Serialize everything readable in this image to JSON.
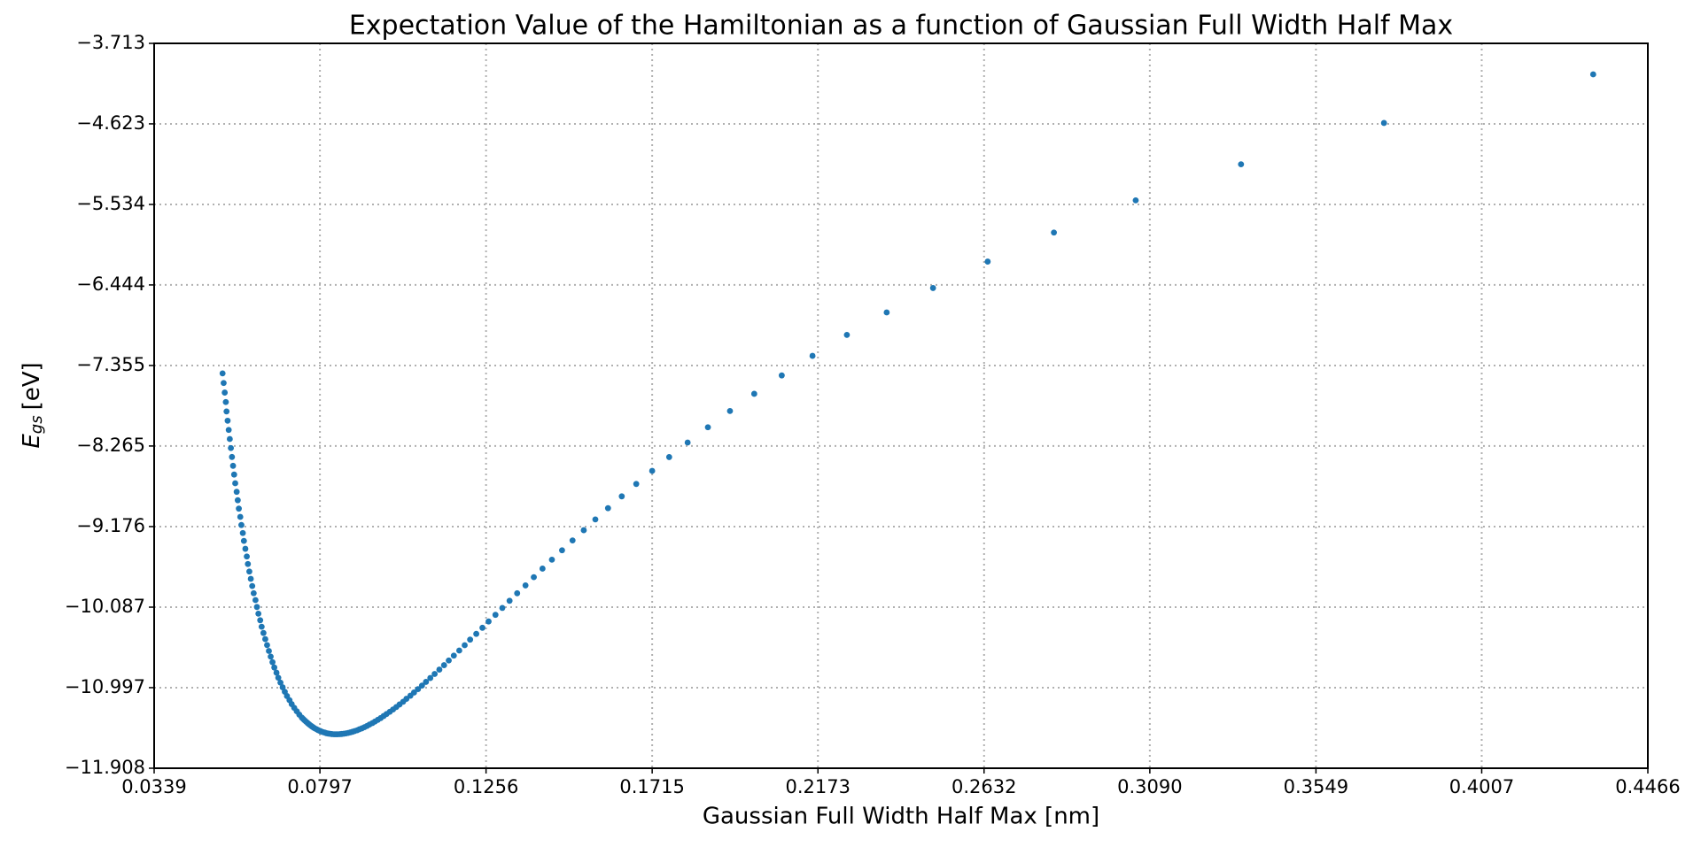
{
  "chart_data": {
    "type": "scatter",
    "title": "Expectation Value of the Hamiltonian as a function of Gaussian Full Width Half Max",
    "x_label": "Gaussian Full Width Half Max [nm]",
    "y_label": {
      "symbol": "E",
      "subscript": "gs",
      "unit": "[eV]"
    },
    "color": "#1f77b4",
    "grid": true,
    "xlim": [
      0.0339,
      0.4466
    ],
    "ylim": [
      -11.908,
      -3.713
    ],
    "xticks": [
      0.0339,
      0.0797,
      0.1256,
      0.1715,
      0.2173,
      0.2632,
      {
        "value": 0.309,
        "label": "0.3090"
      },
      0.3549,
      0.4007,
      0.4466
    ],
    "yticks": [
      {
        "value": -11.908,
        "label": "−11.908"
      },
      {
        "value": -10.997,
        "label": "−10.997"
      },
      {
        "value": -10.087,
        "label": "−10.087"
      },
      {
        "value": -9.176,
        "label": "−9.176"
      },
      {
        "value": -8.265,
        "label": "−8.265"
      },
      {
        "value": -7.355,
        "label": "−7.355"
      },
      {
        "value": -6.444,
        "label": "−6.444"
      },
      {
        "value": -5.534,
        "label": "−5.534"
      },
      {
        "value": -4.623,
        "label": "−4.623"
      },
      {
        "value": -3.713,
        "label": "−3.713"
      }
    ],
    "x": [
      0.4315,
      0.3737,
      0.3342,
      0.3051,
      0.2825,
      0.2642,
      0.2491,
      0.2363,
      0.2253,
      0.2158,
      0.2073,
      0.1997,
      0.193,
      0.1869,
      0.1813,
      0.1762,
      0.1715,
      0.1671,
      0.1631,
      0.1593,
      0.1558,
      0.1526,
      0.1495,
      0.1466,
      0.1438,
      0.1412,
      0.1388,
      0.1365,
      0.1342,
      0.1321,
      0.1301,
      0.1282,
      0.1263,
      0.1246,
      0.1229,
      0.1212,
      0.1197,
      0.1182,
      0.1167,
      0.1153,
      0.114,
      0.1127,
      0.1114,
      0.1102,
      0.109,
      0.1079,
      0.1068,
      0.1057,
      0.1047,
      0.1036,
      0.1027,
      0.1017,
      0.1008,
      0.0999,
      0.099,
      0.0981,
      0.0973,
      0.0965,
      0.0957,
      0.0949,
      0.0942,
      0.0934,
      0.0927,
      0.092,
      0.0913,
      0.0906,
      0.09,
      0.0893,
      0.0887,
      0.0881,
      0.0875,
      0.0869,
      0.0863,
      0.0857,
      0.0852,
      0.0846,
      0.0841,
      0.0836,
      0.083,
      0.0825,
      0.082,
      0.0815,
      0.0811,
      0.0806,
      0.0801,
      0.0797,
      0.0792,
      0.0788,
      0.0783,
      0.0779,
      0.0775,
      0.0771,
      0.0767,
      0.0763,
      0.0759,
      0.0755,
      0.0751,
      0.0747,
      0.074,
      0.0733,
      0.0726,
      0.0719,
      0.0713,
      0.0706,
      0.07,
      0.0694,
      0.0688,
      0.0682,
      0.0677,
      0.0671,
      0.0666,
      0.0661,
      0.0656,
      0.0651,
      0.0646,
      0.0641,
      0.0636,
      0.0632,
      0.0627,
      0.0623,
      0.0619,
      0.0614,
      0.061,
      0.0606,
      0.0602,
      0.0598,
      0.0595,
      0.0591,
      0.0587,
      0.0584,
      0.058,
      0.0577,
      0.0573,
      0.057,
      0.0567,
      0.0563,
      0.056,
      0.0557,
      0.0554,
      0.0551,
      0.0548,
      0.0545,
      0.0542,
      0.0539,
      0.0537,
      0.0534,
      0.0531,
      0.0528
    ],
    "y": [
      -4.063,
      -4.613,
      -5.08,
      -5.488,
      -5.852,
      -6.18,
      -6.479,
      -6.755,
      -7.009,
      -7.246,
      -7.467,
      -7.675,
      -7.869,
      -8.053,
      -8.226,
      -8.39,
      -8.546,
      -8.694,
      -8.834,
      -8.968,
      -9.095,
      -9.217,
      -9.333,
      -9.444,
      -9.55,
      -9.651,
      -9.748,
      -9.841,
      -9.93,
      -10.015,
      -10.096,
      -10.174,
      -10.249,
      -10.32,
      -10.389,
      -10.454,
      -10.517,
      -10.577,
      -10.635,
      -10.69,
      -10.743,
      -10.793,
      -10.842,
      -10.888,
      -10.932,
      -10.974,
      -11.014,
      -11.052,
      -11.088,
      -11.123,
      -11.156,
      -11.187,
      -11.216,
      -11.244,
      -11.27,
      -11.295,
      -11.318,
      -11.341,
      -11.361,
      -11.38,
      -11.398,
      -11.414,
      -11.43,
      -11.444,
      -11.457,
      -11.468,
      -11.479,
      -11.488,
      -11.496,
      -11.503,
      -11.509,
      -11.514,
      -11.518,
      -11.521,
      -11.523,
      -11.524,
      -11.524,
      -11.524,
      -11.522,
      -11.519,
      -11.516,
      -11.512,
      -11.506,
      -11.5,
      -11.493,
      -11.486,
      -11.477,
      -11.468,
      -11.458,
      -11.447,
      -11.436,
      -11.424,
      -11.411,
      -11.397,
      -11.383,
      -11.368,
      -11.352,
      -11.336,
      -11.302,
      -11.264,
      -11.225,
      -11.183,
      -11.139,
      -11.092,
      -11.044,
      -10.993,
      -10.94,
      -10.885,
      -10.828,
      -10.769,
      -10.709,
      -10.646,
      -10.582,
      -10.516,
      -10.448,
      -10.379,
      -10.308,
      -10.235,
      -10.161,
      -10.085,
      -10.007,
      -9.929,
      -9.848,
      -9.767,
      -9.684,
      -9.599,
      -9.514,
      -9.427,
      -9.338,
      -9.249,
      -9.158,
      -9.066,
      -8.973,
      -8.878,
      -8.783,
      -8.686,
      -8.588,
      -8.489,
      -8.389,
      -8.288,
      -8.186,
      -8.083,
      -7.979,
      -7.874,
      -7.768,
      -7.661,
      -7.553,
      -7.444
    ]
  }
}
